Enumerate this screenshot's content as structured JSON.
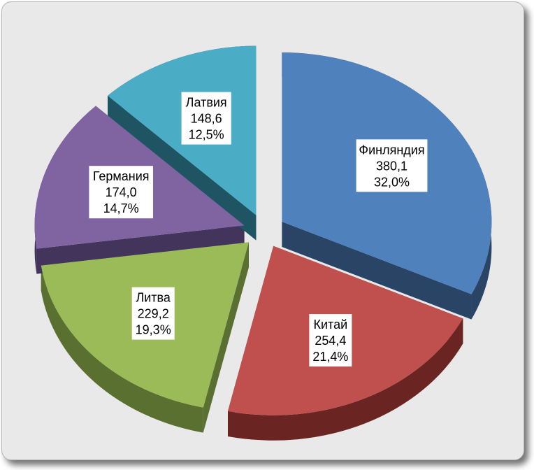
{
  "chart_data": {
    "type": "pie",
    "style": "3d-exploded",
    "slices": [
      {
        "label": "Финляндия",
        "value": 380.1,
        "value_text": "380,1",
        "percent": 32.0,
        "percent_text": "32,0%",
        "color": "#4f81bd",
        "side_color": "#2a4466"
      },
      {
        "label": "Китай",
        "value": 254.4,
        "value_text": "254,4",
        "percent": 21.4,
        "percent_text": "21,4%",
        "color": "#c0504d",
        "side_color": "#6a2523"
      },
      {
        "label": "Литва",
        "value": 229.2,
        "value_text": "229,2",
        "percent": 19.3,
        "percent_text": "19,3%",
        "color": "#9bbb59",
        "side_color": "#5a7030"
      },
      {
        "label": "Германия",
        "value": 174.0,
        "value_text": "174,0",
        "percent": 14.7,
        "percent_text": "14,7%",
        "color": "#8064a2",
        "side_color": "#42345a"
      },
      {
        "label": "Латвия",
        "value": 148.6,
        "value_text": "148,6",
        "percent": 12.5,
        "percent_text": "12,5%",
        "color": "#4bacc6",
        "side_color": "#1f5563"
      }
    ],
    "start_direction": "top",
    "legend": "none",
    "data_labels": "category, value, percent"
  },
  "colors": {
    "background": "#e9e9e9",
    "label_box": "#ffffff"
  }
}
